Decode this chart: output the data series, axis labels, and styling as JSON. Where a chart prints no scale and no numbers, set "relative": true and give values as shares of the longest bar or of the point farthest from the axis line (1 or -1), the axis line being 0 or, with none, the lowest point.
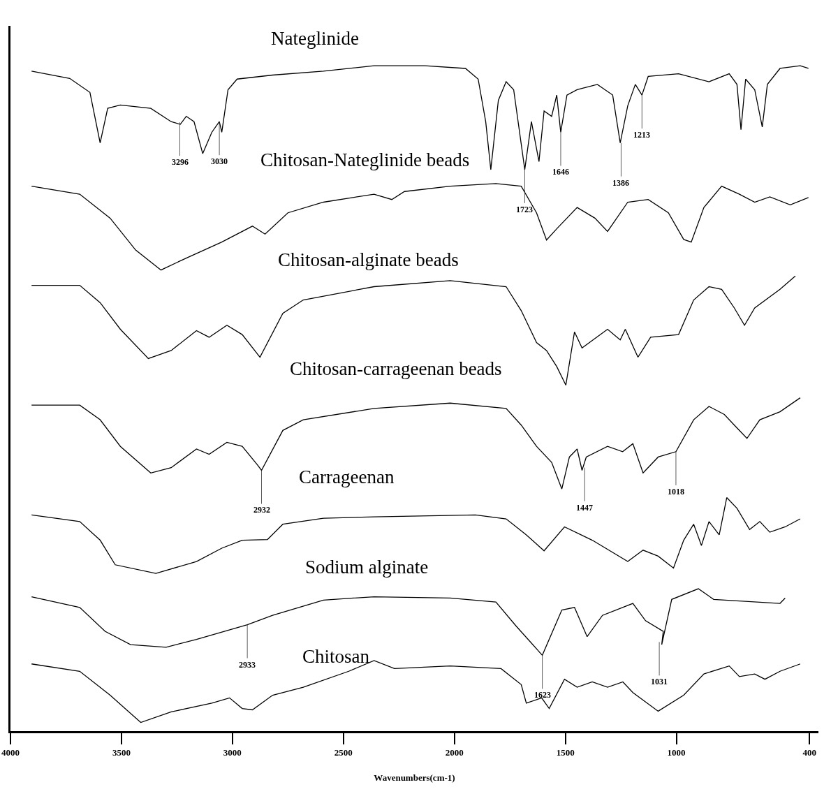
{
  "chart_data": {
    "type": "line",
    "relative": true,
    "xlabel": "Wavenumbers(cm-1)",
    "xlim": [
      4000,
      360
    ],
    "xticks": [
      4000,
      3500,
      3000,
      2500,
      2000,
      1500,
      1000,
      400
    ],
    "grid": false,
    "legend": false,
    "marker": "none",
    "line_style": "solid",
    "series": [
      {
        "name": "Nateglinide",
        "color": "#000000",
        "x": [
          3905,
          3733,
          3642,
          3596,
          3562,
          3505,
          3368,
          3276,
          3235,
          3208,
          3173,
          3134,
          3093,
          3059,
          3048,
          3020,
          2979,
          2819,
          2590,
          2362,
          2133,
          1950,
          1893,
          1859,
          1836,
          1802,
          1767,
          1733,
          1683,
          1653,
          1619,
          1596,
          1562,
          1539,
          1521,
          1493,
          1447,
          1356,
          1287,
          1253,
          1219,
          1185,
          1155,
          1127,
          990,
          853,
          762,
          727,
          709,
          688,
          647,
          613,
          590,
          533,
          442,
          405
        ],
        "values": [
          0.992,
          0.981,
          0.96,
          0.884,
          0.936,
          0.941,
          0.936,
          0.916,
          0.912,
          0.924,
          0.916,
          0.868,
          0.9,
          0.916,
          0.9,
          0.964,
          0.98,
          0.986,
          0.992,
          1.0,
          1.0,
          0.996,
          0.98,
          0.916,
          0.844,
          0.948,
          0.976,
          0.964,
          0.844,
          0.916,
          0.856,
          0.932,
          0.924,
          0.956,
          0.9,
          0.956,
          0.964,
          0.972,
          0.956,
          0.884,
          0.94,
          0.972,
          0.956,
          0.984,
          0.988,
          0.976,
          0.988,
          0.972,
          0.904,
          0.98,
          0.964,
          0.908,
          0.972,
          0.996,
          1.0,
          0.996
        ]
      },
      {
        "name": "Chitosan-Nateglinide beads",
        "color": "#000000",
        "x": [
          3905,
          3688,
          3551,
          3436,
          3322,
          3208,
          3048,
          2910,
          2853,
          2750,
          2590,
          2362,
          2282,
          2225,
          2019,
          1813,
          1699,
          1630,
          1585,
          1539,
          1447,
          1367,
          1310,
          1219,
          1127,
          1036,
          967,
          933,
          876,
          796,
          716,
          647,
          579,
          487,
          405
        ],
        "values": [
          0.819,
          0.807,
          0.771,
          0.723,
          0.693,
          0.711,
          0.735,
          0.759,
          0.747,
          0.779,
          0.795,
          0.807,
          0.799,
          0.811,
          0.819,
          0.823,
          0.819,
          0.779,
          0.738,
          0.755,
          0.787,
          0.771,
          0.751,
          0.795,
          0.799,
          0.779,
          0.739,
          0.735,
          0.787,
          0.819,
          0.807,
          0.795,
          0.803,
          0.791,
          0.802
        ]
      },
      {
        "name": "Chitosan-alginate beads",
        "color": "#000000",
        "x": [
          3905,
          3688,
          3596,
          3505,
          3379,
          3276,
          3162,
          3105,
          3025,
          2956,
          2876,
          2773,
          2681,
          2362,
          2019,
          1767,
          1699,
          1630,
          1585,
          1539,
          1498,
          1459,
          1425,
          1310,
          1253,
          1230,
          1173,
          1116,
          990,
          922,
          853,
          796,
          739,
          693,
          647,
          533,
          464
        ],
        "values": [
          0.67,
          0.67,
          0.644,
          0.604,
          0.56,
          0.572,
          0.602,
          0.592,
          0.61,
          0.596,
          0.562,
          0.628,
          0.648,
          0.668,
          0.677,
          0.668,
          0.632,
          0.584,
          0.572,
          0.548,
          0.52,
          0.6,
          0.576,
          0.604,
          0.588,
          0.604,
          0.562,
          0.592,
          0.596,
          0.648,
          0.668,
          0.664,
          0.636,
          0.61,
          0.636,
          0.664,
          0.684
        ]
      },
      {
        "name": "Chitosan-carrageenan beads",
        "color": "#000000",
        "x": [
          3905,
          3688,
          3596,
          3505,
          3368,
          3276,
          3162,
          3105,
          3025,
          2956,
          2887,
          2869,
          2773,
          2681,
          2362,
          2019,
          1767,
          1699,
          1630,
          1562,
          1516,
          1482,
          1447,
          1425,
          1406,
          1310,
          1242,
          1196,
          1150,
          1082,
          1002,
          922,
          853,
          784,
          739,
          682,
          624,
          533,
          442
        ],
        "values": [
          0.49,
          0.49,
          0.468,
          0.428,
          0.388,
          0.396,
          0.424,
          0.416,
          0.434,
          0.428,
          0.4,
          0.392,
          0.452,
          0.468,
          0.485,
          0.493,
          0.485,
          0.46,
          0.428,
          0.404,
          0.364,
          0.412,
          0.424,
          0.392,
          0.412,
          0.428,
          0.42,
          0.432,
          0.388,
          0.412,
          0.42,
          0.468,
          0.488,
          0.476,
          0.46,
          0.44,
          0.468,
          0.48,
          0.501
        ]
      },
      {
        "name": "Carrageenan",
        "color": "#000000",
        "x": [
          3905,
          3688,
          3596,
          3528,
          3345,
          3162,
          3048,
          2956,
          2842,
          2773,
          2590,
          2362,
          1905,
          1767,
          1676,
          1596,
          1504,
          1379,
          1219,
          1150,
          1082,
          1013,
          967,
          922,
          887,
          853,
          807,
          773,
          727,
          670,
          624,
          579,
          510,
          442
        ],
        "values": [
          0.325,
          0.315,
          0.287,
          0.25,
          0.237,
          0.255,
          0.275,
          0.287,
          0.288,
          0.311,
          0.32,
          0.322,
          0.325,
          0.319,
          0.295,
          0.271,
          0.307,
          0.287,
          0.255,
          0.272,
          0.263,
          0.245,
          0.287,
          0.311,
          0.279,
          0.315,
          0.295,
          0.351,
          0.335,
          0.303,
          0.315,
          0.299,
          0.307,
          0.319
        ]
      },
      {
        "name": "Sodium alginate",
        "color": "#000000",
        "x": [
          3905,
          3688,
          3574,
          3459,
          3299,
          3162,
          2933,
          2819,
          2590,
          2362,
          2019,
          1813,
          1722,
          1604,
          1516,
          1459,
          1402,
          1333,
          1196,
          1139,
          1059,
          1066,
          1021,
          901,
          832,
          533,
          510
        ],
        "values": [
          0.202,
          0.186,
          0.15,
          0.13,
          0.126,
          0.138,
          0.16,
          0.174,
          0.197,
          0.202,
          0.2,
          0.194,
          0.158,
          0.114,
          0.182,
          0.186,
          0.142,
          0.174,
          0.192,
          0.166,
          0.15,
          0.13,
          0.198,
          0.214,
          0.198,
          0.192,
          0.2
        ]
      },
      {
        "name": "Chitosan",
        "color": "#000000",
        "x": [
          3905,
          3688,
          3551,
          3413,
          3276,
          3093,
          3013,
          2956,
          2910,
          2819,
          2681,
          2476,
          2362,
          2270,
          2019,
          1790,
          1699,
          1676,
          1607,
          1573,
          1504,
          1447,
          1379,
          1310,
          1241,
          1196,
          1082,
          967,
          876,
          762,
          716,
          647,
          601,
          533,
          442
        ],
        "values": [
          0.101,
          0.09,
          0.054,
          0.013,
          0.029,
          0.042,
          0.05,
          0.034,
          0.032,
          0.054,
          0.066,
          0.09,
          0.106,
          0.094,
          0.098,
          0.094,
          0.07,
          0.042,
          0.05,
          0.034,
          0.078,
          0.066,
          0.074,
          0.066,
          0.074,
          0.058,
          0.03,
          0.054,
          0.086,
          0.098,
          0.082,
          0.086,
          0.078,
          0.09,
          0.101
        ]
      }
    ],
    "annotations": [
      {
        "text": "3296",
        "x": 3237,
        "y": 0.915
      },
      {
        "text": "3030",
        "x": 3059,
        "y": 0.916
      },
      {
        "text": "1723",
        "x": 1683,
        "y": 0.844
      },
      {
        "text": "1646",
        "x": 1521,
        "y": 0.9
      },
      {
        "text": "1386",
        "x": 1249,
        "y": 0.884
      },
      {
        "text": "1213",
        "x": 1155,
        "y": 0.956
      },
      {
        "text": "2932",
        "x": 2869,
        "y": 0.392
      },
      {
        "text": "1447",
        "x": 1413,
        "y": 0.396
      },
      {
        "text": "1018",
        "x": 1002,
        "y": 0.42
      },
      {
        "text": "2933",
        "x": 2933,
        "y": 0.16
      },
      {
        "text": "1623",
        "x": 1604,
        "y": 0.114
      },
      {
        "text": "1031",
        "x": 1077,
        "y": 0.134
      }
    ]
  }
}
